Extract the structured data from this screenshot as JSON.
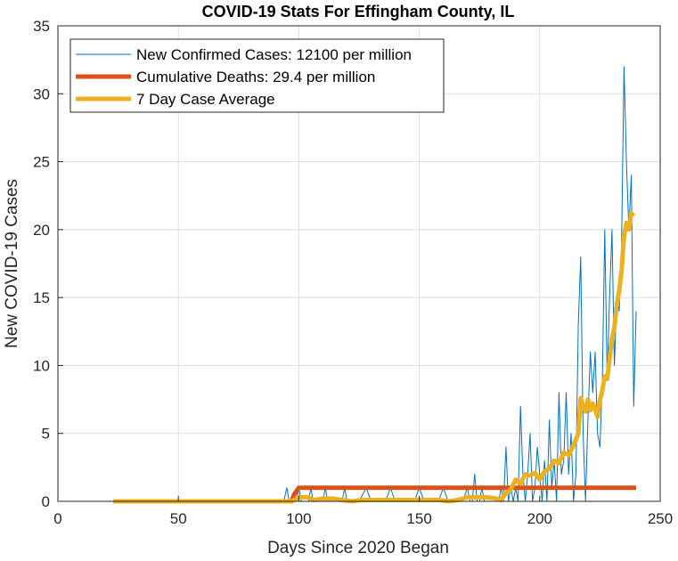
{
  "chart_data": {
    "type": "line",
    "title": "COVID-19 Stats For Effingham County, IL",
    "xlabel": "Days Since 2020 Began",
    "ylabel": "New COVID-19 Cases",
    "xlim": [
      0,
      250
    ],
    "ylim": [
      0,
      35
    ],
    "xticks": [
      0,
      50,
      100,
      150,
      200,
      250
    ],
    "yticks": [
      0,
      5,
      10,
      15,
      20,
      25,
      30,
      35
    ],
    "grid": true,
    "legend_position": "top-left",
    "series": [
      {
        "name": "New Confirmed Cases: 12100 per million",
        "color": "#0072BD",
        "style": "thin",
        "points": [
          [
            23,
            0
          ],
          [
            40,
            0
          ],
          [
            60,
            0
          ],
          [
            80,
            0
          ],
          [
            93,
            0
          ],
          [
            94,
            0.2
          ],
          [
            95,
            1
          ],
          [
            96,
            0
          ],
          [
            97,
            0
          ],
          [
            98,
            0
          ],
          [
            99,
            0
          ],
          [
            100,
            1
          ],
          [
            101,
            0
          ],
          [
            102,
            0
          ],
          [
            103,
            0
          ],
          [
            104,
            0
          ],
          [
            105,
            1
          ],
          [
            106,
            0
          ],
          [
            107,
            0
          ],
          [
            108,
            0
          ],
          [
            109,
            0
          ],
          [
            110,
            0
          ],
          [
            111,
            1
          ],
          [
            112,
            0
          ],
          [
            113,
            0
          ],
          [
            114,
            0
          ],
          [
            115,
            0
          ],
          [
            116,
            0
          ],
          [
            117,
            0
          ],
          [
            118,
            0
          ],
          [
            119,
            1
          ],
          [
            120,
            0
          ],
          [
            121,
            0
          ],
          [
            122,
            0
          ],
          [
            125,
            0
          ],
          [
            128,
            1
          ],
          [
            130,
            0
          ],
          [
            133,
            0
          ],
          [
            136,
            0
          ],
          [
            138,
            1
          ],
          [
            140,
            0
          ],
          [
            142,
            0
          ],
          [
            145,
            0
          ],
          [
            148,
            0
          ],
          [
            150,
            1
          ],
          [
            152,
            0
          ],
          [
            155,
            0
          ],
          [
            158,
            0
          ],
          [
            160,
            1
          ],
          [
            162,
            0
          ],
          [
            165,
            0
          ],
          [
            168,
            0
          ],
          [
            170,
            1
          ],
          [
            171,
            0
          ],
          [
            172,
            0
          ],
          [
            173,
            2
          ],
          [
            174,
            0
          ],
          [
            175,
            0
          ],
          [
            176,
            1
          ],
          [
            177,
            0
          ],
          [
            178,
            0
          ],
          [
            179,
            0
          ],
          [
            180,
            0
          ],
          [
            181,
            0
          ],
          [
            182,
            0
          ],
          [
            183,
            0
          ],
          [
            184,
            1
          ],
          [
            185,
            0
          ],
          [
            186,
            4
          ],
          [
            187,
            0
          ],
          [
            188,
            1
          ],
          [
            189,
            0
          ],
          [
            190,
            1
          ],
          [
            191,
            0
          ],
          [
            192,
            7
          ],
          [
            193,
            2
          ],
          [
            194,
            0
          ],
          [
            195,
            2
          ],
          [
            196,
            5
          ],
          [
            197,
            0
          ],
          [
            198,
            1
          ],
          [
            199,
            4
          ],
          [
            200,
            2
          ],
          [
            201,
            0
          ],
          [
            202,
            3
          ],
          [
            203,
            0
          ],
          [
            204,
            6
          ],
          [
            205,
            1
          ],
          [
            206,
            3
          ],
          [
            207,
            0
          ],
          [
            208,
            8
          ],
          [
            209,
            2
          ],
          [
            210,
            3
          ],
          [
            211,
            8
          ],
          [
            212,
            2
          ],
          [
            213,
            5
          ],
          [
            214,
            0
          ],
          [
            215,
            2
          ],
          [
            216,
            13
          ],
          [
            217,
            18
          ],
          [
            218,
            5
          ],
          [
            219,
            0
          ],
          [
            220,
            6
          ],
          [
            221,
            11
          ],
          [
            222,
            8
          ],
          [
            223,
            11
          ],
          [
            224,
            5
          ],
          [
            225,
            4
          ],
          [
            226,
            9
          ],
          [
            227,
            20
          ],
          [
            228,
            9
          ],
          [
            229,
            15
          ],
          [
            230,
            20
          ],
          [
            231,
            10
          ],
          [
            232,
            15
          ],
          [
            233,
            14
          ],
          [
            234,
            19
          ],
          [
            235,
            32
          ],
          [
            236,
            25
          ],
          [
            237,
            20
          ],
          [
            238,
            24
          ],
          [
            239,
            7
          ],
          [
            240,
            14
          ]
        ]
      },
      {
        "name": "Cumulative Deaths: 29.4 per million",
        "color": "#D95319",
        "style": "thick",
        "points": [
          [
            23,
            0
          ],
          [
            97,
            0
          ],
          [
            98,
            0.5
          ],
          [
            100,
            1
          ],
          [
            197,
            1
          ],
          [
            198,
            1
          ],
          [
            240,
            1
          ]
        ]
      },
      {
        "name": "7 Day Case Average",
        "color": "#EDB120",
        "style": "thick",
        "points": [
          [
            23,
            0
          ],
          [
            97,
            0
          ],
          [
            98,
            0.1
          ],
          [
            100,
            0.3
          ],
          [
            104,
            0.3
          ],
          [
            106,
            0.1
          ],
          [
            110,
            0.2
          ],
          [
            114,
            0.2
          ],
          [
            118,
            0.1
          ],
          [
            122,
            0
          ],
          [
            126,
            0.1
          ],
          [
            130,
            0.1
          ],
          [
            134,
            0.1
          ],
          [
            138,
            0.1
          ],
          [
            142,
            0.1
          ],
          [
            146,
            0.1
          ],
          [
            150,
            0.1
          ],
          [
            154,
            0.1
          ],
          [
            158,
            0.1
          ],
          [
            162,
            0
          ],
          [
            166,
            0.1
          ],
          [
            170,
            0.3
          ],
          [
            174,
            0.3
          ],
          [
            178,
            0.3
          ],
          [
            182,
            0.2
          ],
          [
            184,
            0.1
          ],
          [
            186,
            0.6
          ],
          [
            188,
            0.9
          ],
          [
            190,
            1.6
          ],
          [
            192,
            1.3
          ],
          [
            194,
            2.0
          ],
          [
            196,
            1.9
          ],
          [
            198,
            2.1
          ],
          [
            200,
            1.6
          ],
          [
            202,
            2.2
          ],
          [
            204,
            2.4
          ],
          [
            206,
            3.0
          ],
          [
            208,
            2.8
          ],
          [
            210,
            3.6
          ],
          [
            212,
            3.4
          ],
          [
            214,
            4.1
          ],
          [
            216,
            5.0
          ],
          [
            217,
            7.6
          ],
          [
            218,
            7.0
          ],
          [
            219,
            6.6
          ],
          [
            220,
            7.5
          ],
          [
            221,
            6.7
          ],
          [
            222,
            7.2
          ],
          [
            223,
            6.8
          ],
          [
            224,
            6.2
          ],
          [
            225,
            7.4
          ],
          [
            226,
            8.2
          ],
          [
            227,
            9.2
          ],
          [
            228,
            9.0
          ],
          [
            229,
            10.5
          ],
          [
            230,
            12.0
          ],
          [
            231,
            12.8
          ],
          [
            232,
            14.5
          ],
          [
            233,
            15.5
          ],
          [
            234,
            17.0
          ],
          [
            235,
            19.5
          ],
          [
            236,
            20.5
          ],
          [
            237,
            20.0
          ],
          [
            238,
            21.2
          ],
          [
            239,
            21.0
          ]
        ]
      }
    ]
  }
}
